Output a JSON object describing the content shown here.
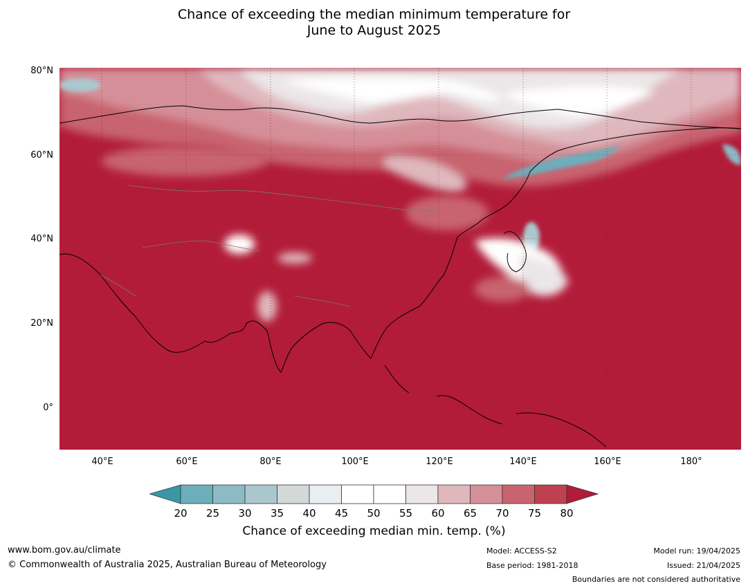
{
  "title": {
    "line1": "Chance of exceeding the median minimum temperature for",
    "line2": "June to August 2025"
  },
  "map": {
    "lat_labels": [
      "80°N",
      "60°N",
      "40°N",
      "20°N",
      "0°"
    ],
    "lon_labels": [
      "40°E",
      "60°E",
      "80°E",
      "100°E",
      "120°E",
      "140°E",
      "160°E",
      "180°"
    ],
    "extent": {
      "lon": [
        30,
        192
      ],
      "lat": [
        -10,
        81
      ]
    },
    "dominant_color": "#b21c38"
  },
  "colorbar": {
    "ticks": [
      "20",
      "25",
      "30",
      "35",
      "40",
      "45",
      "50",
      "55",
      "60",
      "65",
      "70",
      "75",
      "80"
    ],
    "colors": [
      "#3a97a7",
      "#6caebb",
      "#8cbac5",
      "#aac7cd",
      "#d4d8d9",
      "#e9eef0",
      "#ffffff",
      "#ffffff",
      "#ebe6e8",
      "#dfb8be",
      "#d58f98",
      "#c8646f",
      "#bf4150",
      "#b21c38"
    ],
    "label": "Chance of exceeding median min. temp. (%)"
  },
  "footer": {
    "url": "www.bom.gov.au/climate",
    "copyright": "© Commonwealth of Australia 2025, Australian Bureau of Meteorology",
    "model": "Model: ACCESS-S2",
    "base_period": "Base period: 1981-2018",
    "model_run": "Model run: 19/04/2025",
    "issued": "Issued: 21/04/2025",
    "disclaimer": "Boundaries are not considered authoritative"
  }
}
